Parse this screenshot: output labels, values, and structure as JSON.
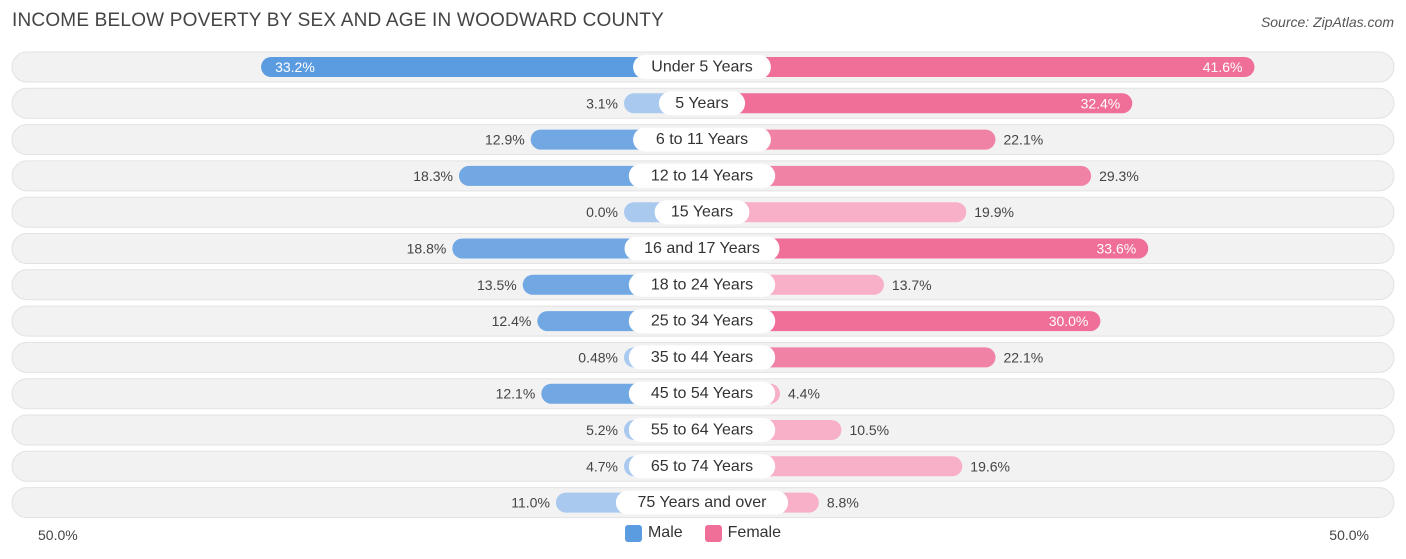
{
  "title": "INCOME BELOW POVERTY BY SEX AND AGE IN WOODWARD COUNTY",
  "source": "Source: ZipAtlas.com",
  "axis": {
    "left_label": "50.0%",
    "right_label": "50.0%"
  },
  "legend": {
    "male_label": "Male",
    "female_label": "Female"
  },
  "colors": {
    "male_strong": "#5b9be0",
    "male_light": "#a9c9ef",
    "female_strong": "#f06f98",
    "female_light": "#f7b0c8",
    "row_bg": "#f2f2f2"
  },
  "chart_data": {
    "type": "bar",
    "orientation": "horizontal-diverging",
    "xlim": [
      -50,
      50
    ],
    "categories": [
      "Under 5 Years",
      "5 Years",
      "6 to 11 Years",
      "12 to 14 Years",
      "15 Years",
      "16 and 17 Years",
      "18 to 24 Years",
      "25 to 34 Years",
      "35 to 44 Years",
      "45 to 54 Years",
      "55 to 64 Years",
      "65 to 74 Years",
      "75 Years and over"
    ],
    "series": [
      {
        "name": "Male",
        "values": [
          33.2,
          3.1,
          12.9,
          18.3,
          0.0,
          18.8,
          13.5,
          12.4,
          0.48,
          12.1,
          5.2,
          4.7,
          11.0
        ],
        "labels": [
          "33.2%",
          "3.1%",
          "12.9%",
          "18.3%",
          "0.0%",
          "18.8%",
          "13.5%",
          "12.4%",
          "0.48%",
          "12.1%",
          "5.2%",
          "4.7%",
          "11.0%"
        ]
      },
      {
        "name": "Female",
        "values": [
          41.6,
          32.4,
          22.1,
          29.3,
          19.9,
          33.6,
          13.7,
          30.0,
          22.1,
          4.4,
          10.5,
          19.6,
          8.8
        ],
        "labels": [
          "41.6%",
          "32.4%",
          "22.1%",
          "29.3%",
          "19.9%",
          "33.6%",
          "13.7%",
          "30.0%",
          "22.1%",
          "4.4%",
          "10.5%",
          "19.6%",
          "8.8%"
        ]
      }
    ]
  }
}
